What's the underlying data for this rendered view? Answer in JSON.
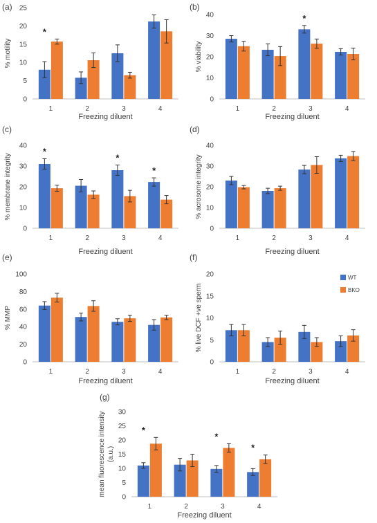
{
  "colors": {
    "wt": "#4472C4",
    "bko": "#ED7D31",
    "axis": "#BFBFBF",
    "text": "#404040"
  },
  "legend": {
    "items": [
      "WT",
      "BKO"
    ]
  },
  "chart_data": [
    {
      "panel": "(a)",
      "type": "bar",
      "ylabel": "% motility",
      "xlabel": "Freezing diluent",
      "categories": [
        "1",
        "2",
        "3",
        "4"
      ],
      "ylim": [
        0,
        25
      ],
      "yticks": [
        0,
        5,
        10,
        15,
        20,
        25
      ],
      "series": [
        {
          "name": "WT",
          "values": [
            8.0,
            5.8,
            12.5,
            21.2
          ],
          "errors": [
            2.2,
            1.6,
            2.3,
            1.8
          ]
        },
        {
          "name": "BKO",
          "values": [
            15.7,
            10.6,
            6.5,
            18.5
          ],
          "errors": [
            0.7,
            2.0,
            0.8,
            3.2
          ]
        }
      ],
      "annotations": [
        {
          "category": "1",
          "text": "*"
        }
      ]
    },
    {
      "panel": "(b)",
      "type": "bar",
      "ylabel": "% viability",
      "xlabel": "Freezing diluent",
      "categories": [
        "1",
        "2",
        "3",
        "4"
      ],
      "ylim": [
        0,
        40
      ],
      "yticks": [
        0,
        10,
        20,
        30,
        40
      ],
      "series": [
        {
          "name": "WT",
          "values": [
            28.5,
            23.3,
            33.0,
            22.3
          ],
          "errors": [
            1.5,
            2.8,
            1.8,
            1.5
          ]
        },
        {
          "name": "BKO",
          "values": [
            25.0,
            20.3,
            26.2,
            21.3
          ],
          "errors": [
            2.3,
            4.5,
            2.2,
            2.8
          ]
        }
      ],
      "annotations": [
        {
          "category": "3",
          "text": "*"
        }
      ]
    },
    {
      "panel": "(c)",
      "type": "bar",
      "ylabel": "% membrane integrity",
      "xlabel": "Freezing diluent",
      "categories": [
        "1",
        "2",
        "3",
        "4"
      ],
      "ylim": [
        0,
        40
      ],
      "yticks": [
        0,
        10,
        20,
        30,
        40
      ],
      "series": [
        {
          "name": "WT",
          "values": [
            31.0,
            20.5,
            28.0,
            22.3
          ],
          "errors": [
            2.5,
            3.0,
            2.5,
            2.0
          ]
        },
        {
          "name": "BKO",
          "values": [
            19.3,
            16.2,
            15.5,
            13.8
          ],
          "errors": [
            1.5,
            1.8,
            2.8,
            2.0
          ]
        }
      ],
      "annotations": [
        {
          "category": "1",
          "text": "*"
        },
        {
          "category": "3",
          "text": "*"
        },
        {
          "category": "4",
          "text": "*"
        }
      ]
    },
    {
      "panel": "(d)",
      "type": "bar",
      "ylabel": "% acrosome integrity",
      "xlabel": "Freezing diluent",
      "categories": [
        "1",
        "2",
        "3",
        "4"
      ],
      "ylim": [
        0,
        40
      ],
      "yticks": [
        0,
        10,
        20,
        30,
        40
      ],
      "series": [
        {
          "name": "WT",
          "values": [
            23.0,
            18.0,
            28.3,
            33.7
          ],
          "errors": [
            2.0,
            1.3,
            2.0,
            1.5
          ]
        },
        {
          "name": "BKO",
          "values": [
            19.8,
            19.3,
            30.5,
            34.8
          ],
          "errors": [
            0.8,
            1.0,
            4.0,
            2.2
          ]
        }
      ],
      "annotations": []
    },
    {
      "panel": "(e)",
      "type": "bar",
      "ylabel": "% MMP",
      "xlabel": "Freezing diluent",
      "categories": [
        "1",
        "2",
        "3",
        "4"
      ],
      "ylim": [
        0,
        100
      ],
      "yticks": [
        0,
        20,
        40,
        60,
        80,
        100
      ],
      "series": [
        {
          "name": "WT",
          "values": [
            64.0,
            51.0,
            45.5,
            42.0
          ],
          "errors": [
            4.5,
            4.5,
            3.5,
            6.0
          ]
        },
        {
          "name": "BKO",
          "values": [
            73.0,
            63.5,
            49.5,
            50.5
          ],
          "errors": [
            5.0,
            6.0,
            3.5,
            2.5
          ]
        }
      ],
      "annotations": []
    },
    {
      "panel": "(f)",
      "type": "bar",
      "ylabel": "% live DCF +ve sperm",
      "xlabel": "Freezing diluent",
      "categories": [
        "1",
        "2",
        "3",
        "4"
      ],
      "ylim": [
        0,
        20
      ],
      "yticks": [
        0,
        5,
        10,
        15,
        20
      ],
      "series": [
        {
          "name": "WT",
          "values": [
            7.2,
            4.5,
            6.8,
            4.7
          ],
          "errors": [
            1.3,
            1.0,
            1.5,
            1.2
          ]
        },
        {
          "name": "BKO",
          "values": [
            7.2,
            5.5,
            4.5,
            6.0
          ],
          "errors": [
            1.3,
            1.5,
            1.0,
            1.3
          ]
        }
      ],
      "annotations": []
    },
    {
      "panel": "(g)",
      "type": "bar",
      "ylabel": "mean fluorescence intensity (a.u.)",
      "xlabel": "Freezing diluent",
      "categories": [
        "1",
        "2",
        "3",
        "4"
      ],
      "ylim": [
        0,
        30
      ],
      "yticks": [
        0,
        5,
        10,
        15,
        20,
        25,
        30
      ],
      "series": [
        {
          "name": "WT",
          "values": [
            11.0,
            11.3,
            9.8,
            8.7
          ],
          "errors": [
            1.0,
            2.2,
            1.2,
            1.2
          ]
        },
        {
          "name": "BKO",
          "values": [
            18.7,
            12.8,
            17.2,
            13.2
          ],
          "errors": [
            2.2,
            2.2,
            1.5,
            1.5
          ]
        }
      ],
      "annotations": [
        {
          "category": "1",
          "text": "*"
        },
        {
          "category": "3",
          "text": "*"
        },
        {
          "category": "4",
          "text": "*"
        }
      ]
    }
  ]
}
